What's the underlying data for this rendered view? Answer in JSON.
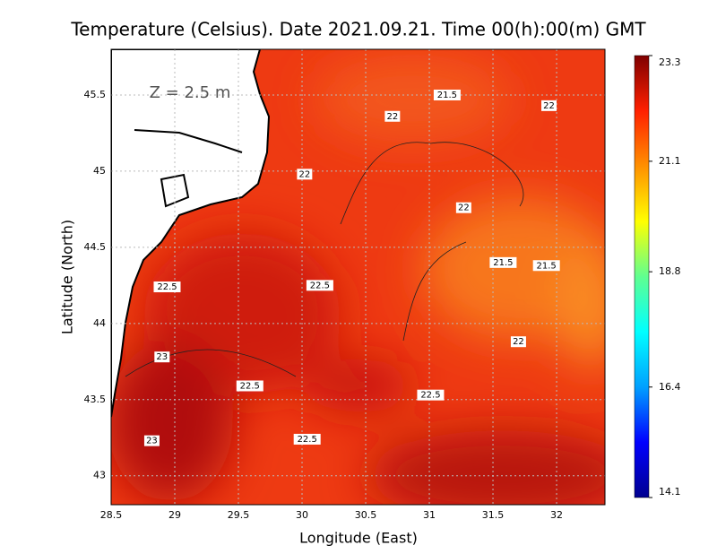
{
  "chart_data": {
    "type": "map",
    "title": "Temperature (Celsius). Date 2021.09.21. Time 00(h):00(m) GMT",
    "xlabel": "Longitude (East)",
    "ylabel": "Latitude (North)",
    "annotation": "Z = 2.5 m",
    "xlim": [
      28.5,
      32.38
    ],
    "ylim": [
      42.81,
      45.8
    ],
    "xticks": [
      28.5,
      29,
      29.5,
      30,
      30.5,
      31,
      31.5,
      32
    ],
    "yticks": [
      43,
      43.5,
      44,
      44.5,
      45,
      45.5
    ],
    "grid": true,
    "colorbar": {
      "lim": [
        14.1,
        23.3
      ],
      "ticks": [
        14.1,
        16.4,
        18.8,
        21.1,
        23.3
      ],
      "colors": [
        "#00008f",
        "#0000ff",
        "#00a0ff",
        "#00ffff",
        "#60ff90",
        "#ffff00",
        "#ff9000",
        "#ff2000",
        "#7f0000"
      ]
    },
    "contour_labels": [
      {
        "label": "21.5",
        "lon": 31.14,
        "lat": 45.5
      },
      {
        "label": "22",
        "lon": 30.71,
        "lat": 45.36
      },
      {
        "label": "22",
        "lon": 31.94,
        "lat": 45.43
      },
      {
        "label": "22",
        "lon": 30.02,
        "lat": 44.98
      },
      {
        "label": "22",
        "lon": 31.27,
        "lat": 44.76
      },
      {
        "label": "21.5",
        "lon": 31.58,
        "lat": 44.4
      },
      {
        "label": "21.5",
        "lon": 31.92,
        "lat": 44.38
      },
      {
        "label": "22.5",
        "lon": 28.94,
        "lat": 44.24
      },
      {
        "label": "22.5",
        "lon": 30.14,
        "lat": 44.25
      },
      {
        "label": "22",
        "lon": 31.7,
        "lat": 43.88
      },
      {
        "label": "23",
        "lon": 28.9,
        "lat": 43.78
      },
      {
        "label": "22.5",
        "lon": 29.59,
        "lat": 43.59
      },
      {
        "label": "22.5",
        "lon": 31.01,
        "lat": 43.53
      },
      {
        "label": "22.5",
        "lon": 30.04,
        "lat": 43.24
      },
      {
        "label": "23",
        "lon": 28.82,
        "lat": 43.23
      }
    ]
  }
}
